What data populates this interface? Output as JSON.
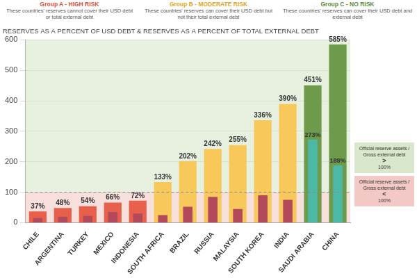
{
  "chart_data": {
    "type": "bar",
    "title": "RESERVES AS A PERCENT OF USD DEBT & RESERVES AS A PERCENT OF TOTAL EXTERNAL DEBT",
    "groups": [
      {
        "title": "Group A - HIGH RISK",
        "description": "These countries' reserves cannot cover their USD debt or total external debt"
      },
      {
        "title": "Group B - MODERATE RISK",
        "description": "These countries' reserves can cover their USD debt but not their total external debt"
      },
      {
        "title": "Group C - NO RISK",
        "description": "These countries' reserves can cover their USD debt and external debt"
      }
    ],
    "categories": [
      "CHILE",
      "ARGENTINA",
      "TURKEY",
      "MEXICO",
      "INDONESIA",
      "SOUTH AFRICA",
      "BRAZIL",
      "RUSSIA",
      "MALAYSIA",
      "SOUTH KOREA",
      "INDIA",
      "SAUDI ARABIA",
      "CHINA"
    ],
    "series": [
      {
        "values": [
          37,
          48,
          54,
          66,
          72,
          133,
          202,
          242,
          255,
          336,
          390,
          451,
          585
        ],
        "value_labels": [
          "37%",
          "48%",
          "54%",
          "66%",
          "72%",
          "133%",
          "202%",
          "242%",
          "255%",
          "336%",
          "390%",
          "451%",
          "585%"
        ],
        "colors": [
          "#e8604c",
          "#e8604c",
          "#e8604c",
          "#e8604c",
          "#e8604c",
          "#f8c95a",
          "#f8c95a",
          "#f8c95a",
          "#f8c95a",
          "#f8c95a",
          "#f8c95a",
          "#6e9a4c",
          "#6e9a4c"
        ]
      },
      {
        "values": [
          15,
          20,
          22,
          35,
          30,
          25,
          52,
          85,
          45,
          90,
          75,
          273,
          188
        ],
        "value_labels": [
          null,
          null,
          null,
          null,
          null,
          null,
          null,
          null,
          null,
          null,
          null,
          "273%",
          "188%"
        ],
        "colors": [
          "#b24a5c",
          "#b24a5c",
          "#b24a5c",
          "#b24a5c",
          "#b24a5c",
          "#b24a5c",
          "#b24a5c",
          "#b24a5c",
          "#b24a5c",
          "#b24a5c",
          "#b24a5c",
          "#4cb8a6",
          "#4cb8a6"
        ]
      }
    ],
    "threshold": 100,
    "annotations": [
      {
        "text": "Official reserve assets / Gross external debt",
        "sign": ">",
        "value": "100%",
        "color": "#d9e8cc"
      },
      {
        "text": "Official reserve assets / Gross external debt",
        "sign": "<",
        "value": "100%",
        "color": "#f2c9c4"
      }
    ],
    "ylim": [
      0,
      600
    ],
    "yticks": [
      0,
      100,
      200,
      300,
      400,
      500,
      600
    ],
    "grid": true,
    "data_labels": true
  }
}
